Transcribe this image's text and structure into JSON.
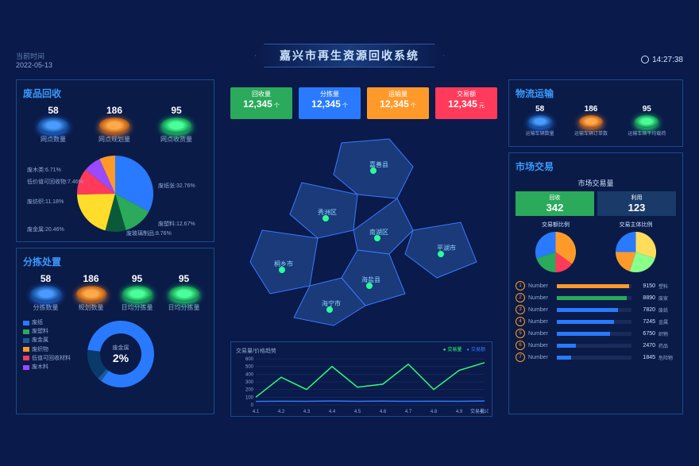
{
  "header": {
    "date_label": "当前时间",
    "date": "2022-05-13",
    "title": "嘉兴市再生资源回收系统",
    "time": "14:27:38"
  },
  "kpis": [
    {
      "label": "回收量",
      "value": "12,345",
      "unit": "个",
      "color": "#2aaa5a"
    },
    {
      "label": "分拣量",
      "value": "12,345",
      "unit": "个",
      "color": "#2a7aff"
    },
    {
      "label": "运输量",
      "value": "12,345",
      "unit": "个",
      "color": "#ff9a2a"
    },
    {
      "label": "交易额",
      "value": "12,345",
      "unit": "元",
      "color": "#ff3a5a"
    }
  ],
  "waste": {
    "title": "废品回收",
    "discs": [
      {
        "value": "58",
        "label": "网点数量",
        "color": "blue"
      },
      {
        "value": "186",
        "label": "网点规划量",
        "color": "orange"
      },
      {
        "value": "95",
        "label": "网点收货量",
        "color": "green"
      }
    ],
    "pie": {
      "slices": [
        {
          "label": "废纸张:32.76%",
          "value": 32.76,
          "color": "#2a7aff"
        },
        {
          "label": "废塑料:12.67%",
          "value": 12.67,
          "color": "#2aaa5a"
        },
        {
          "label": "废玻璃制品:8.76%",
          "value": 8.76,
          "color": "#0a5a3a"
        },
        {
          "label": "废金属:20.46%",
          "value": 20.46,
          "color": "#ffdd2a"
        },
        {
          "label": "废纺织:11.18%",
          "value": 11.18,
          "color": "#ff3a5a"
        },
        {
          "label": "低价值可回收物:7.46%",
          "value": 7.46,
          "color": "#9a4aff"
        },
        {
          "label": "废木类:6.71%",
          "value": 6.71,
          "color": "#ff9a2a"
        }
      ]
    }
  },
  "sort": {
    "title": "分拣处置",
    "discs": [
      {
        "value": "58",
        "label": "分拣数量",
        "color": "blue"
      },
      {
        "value": "186",
        "label": "规划数量",
        "color": "orange"
      },
      {
        "value": "95",
        "label": "日均分拣量",
        "color": "green"
      },
      {
        "value": "95",
        "label": "日均分拣量",
        "color": "green"
      }
    ],
    "legend": [
      {
        "label": "废纸",
        "color": "#2a7aff"
      },
      {
        "label": "废塑料",
        "color": "#2aaa5a"
      },
      {
        "label": "废金属",
        "color": "#1a5a9a"
      },
      {
        "label": "废织物",
        "color": "#ff9a2a"
      },
      {
        "label": "低值可回收材料",
        "color": "#ff3a5a"
      },
      {
        "label": "废木料",
        "color": "#9a4aff"
      }
    ],
    "donut": {
      "center_label": "废金属",
      "center_value": "2%"
    }
  },
  "map": {
    "regions": [
      "嘉善县",
      "秀洲区",
      "南湖区",
      "桐乡市",
      "海盐县",
      "平湖市",
      "海宁市"
    ]
  },
  "line": {
    "title": "交易量/价格趋势",
    "legend": [
      "交易量",
      "交易额"
    ],
    "ymax": 600,
    "ystep": 100,
    "xlabels": [
      "4.1",
      "4.2",
      "4.3",
      "4.4",
      "4.5",
      "4.6",
      "4.7",
      "4.8",
      "4.9",
      "4.10"
    ],
    "xaxis": "交易量",
    "series1": [
      100,
      360,
      200,
      500,
      230,
      270,
      530,
      200,
      450,
      550
    ],
    "series2": [
      45,
      48,
      46,
      50,
      47,
      49,
      46,
      48,
      47,
      50
    ],
    "color1": "#2aff7a",
    "color2": "#2a7aff"
  },
  "transport": {
    "title": "物流运输",
    "discs": [
      {
        "value": "58",
        "label": "运输车辆数量",
        "color": "blue"
      },
      {
        "value": "186",
        "label": "运输车辆订单数",
        "color": "orange"
      },
      {
        "value": "95",
        "label": "运输车辆平均载荷",
        "color": "green"
      }
    ]
  },
  "market": {
    "title": "市场交易",
    "sub": "市场交易量",
    "boxes": [
      {
        "label": "回收",
        "value": "342"
      },
      {
        "label": "利用",
        "value": "123"
      }
    ],
    "pie_labels": [
      "交易额比例",
      "交易主体比例"
    ],
    "pie1_colors": [
      "#ff9a2a",
      "#ff3a5a",
      "#2aaa5a",
      "#2a7aff"
    ],
    "pie2_colors": [
      "#ffdd5a",
      "#8aff8a",
      "#ff9a2a",
      "#2a7aff"
    ],
    "bars": [
      {
        "rank": 1,
        "name": "Number",
        "value": 9150,
        "cat": "塑料",
        "color": "#ff9a2a"
      },
      {
        "rank": 2,
        "name": "Number",
        "value": 8890,
        "cat": "废家",
        "color": "#2aaa5a"
      },
      {
        "rank": 3,
        "name": "Number",
        "value": 7820,
        "cat": "废纸",
        "color": "#2a7aff"
      },
      {
        "rank": 4,
        "name": "Number",
        "value": 7245,
        "cat": "金属",
        "color": "#2a7aff"
      },
      {
        "rank": 5,
        "name": "Number",
        "value": 6750,
        "cat": "织物",
        "color": "#2a7aff"
      },
      {
        "rank": 6,
        "name": "Number",
        "value": 2470,
        "cat": "药品",
        "color": "#2a7aff"
      },
      {
        "rank": 7,
        "name": "Number",
        "value": 1845,
        "cat": "危险物",
        "color": "#2a7aff"
      }
    ],
    "bar_max": 9500
  }
}
